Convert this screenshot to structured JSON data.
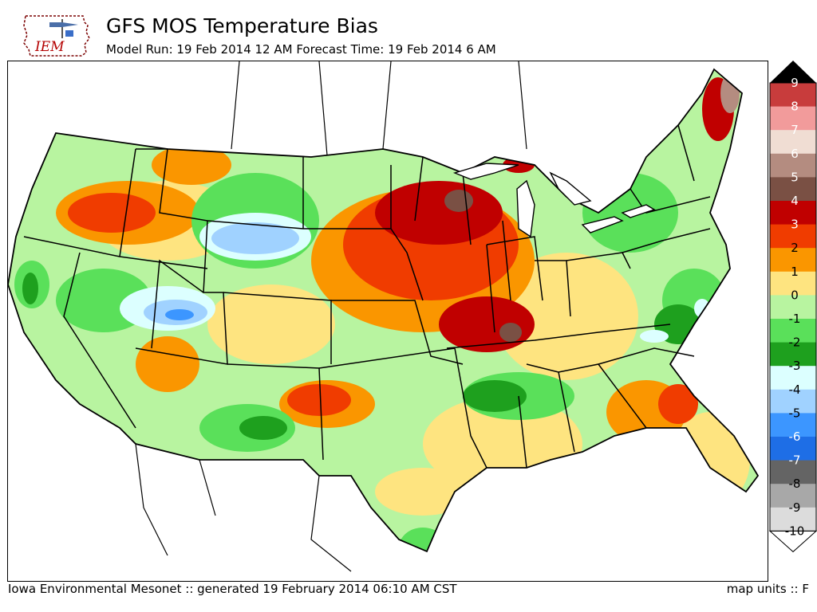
{
  "header": {
    "title": "GFS MOS Temperature Bias",
    "subtitle": "Model Run: 19 Feb 2014 12 AM Forecast Time: 19 Feb 2014 6 AM",
    "logo_text": "IEM"
  },
  "footer": {
    "credit": "Iowa Environmental Mesonet :: generated 19 February 2014 06:10 AM CST",
    "units": "map units :: F"
  },
  "legend": {
    "labels": [
      "9",
      "8",
      "7",
      "6",
      "5",
      "4",
      "3",
      "2",
      "1",
      "0",
      "-1",
      "-2",
      "-3",
      "-4",
      "-5",
      "-6",
      "-7",
      "-8",
      "-9",
      "-10"
    ],
    "colors": [
      "#c83c3c",
      "#f29b9b",
      "#f0ddd3",
      "#b48c80",
      "#7a5044",
      "#c00000",
      "#f03c00",
      "#fa9600",
      "#fee480",
      "#b8f4a0",
      "#5ae05a",
      "#1ea01e",
      "#dcffff",
      "#a0d2ff",
      "#3c96ff",
      "#1e6ee6",
      "#646464",
      "#a8a8a8",
      "#dcdcdc"
    ],
    "top_color": "#000000"
  },
  "colors": {
    "coast": "#000000",
    "state_border": "#000000"
  }
}
